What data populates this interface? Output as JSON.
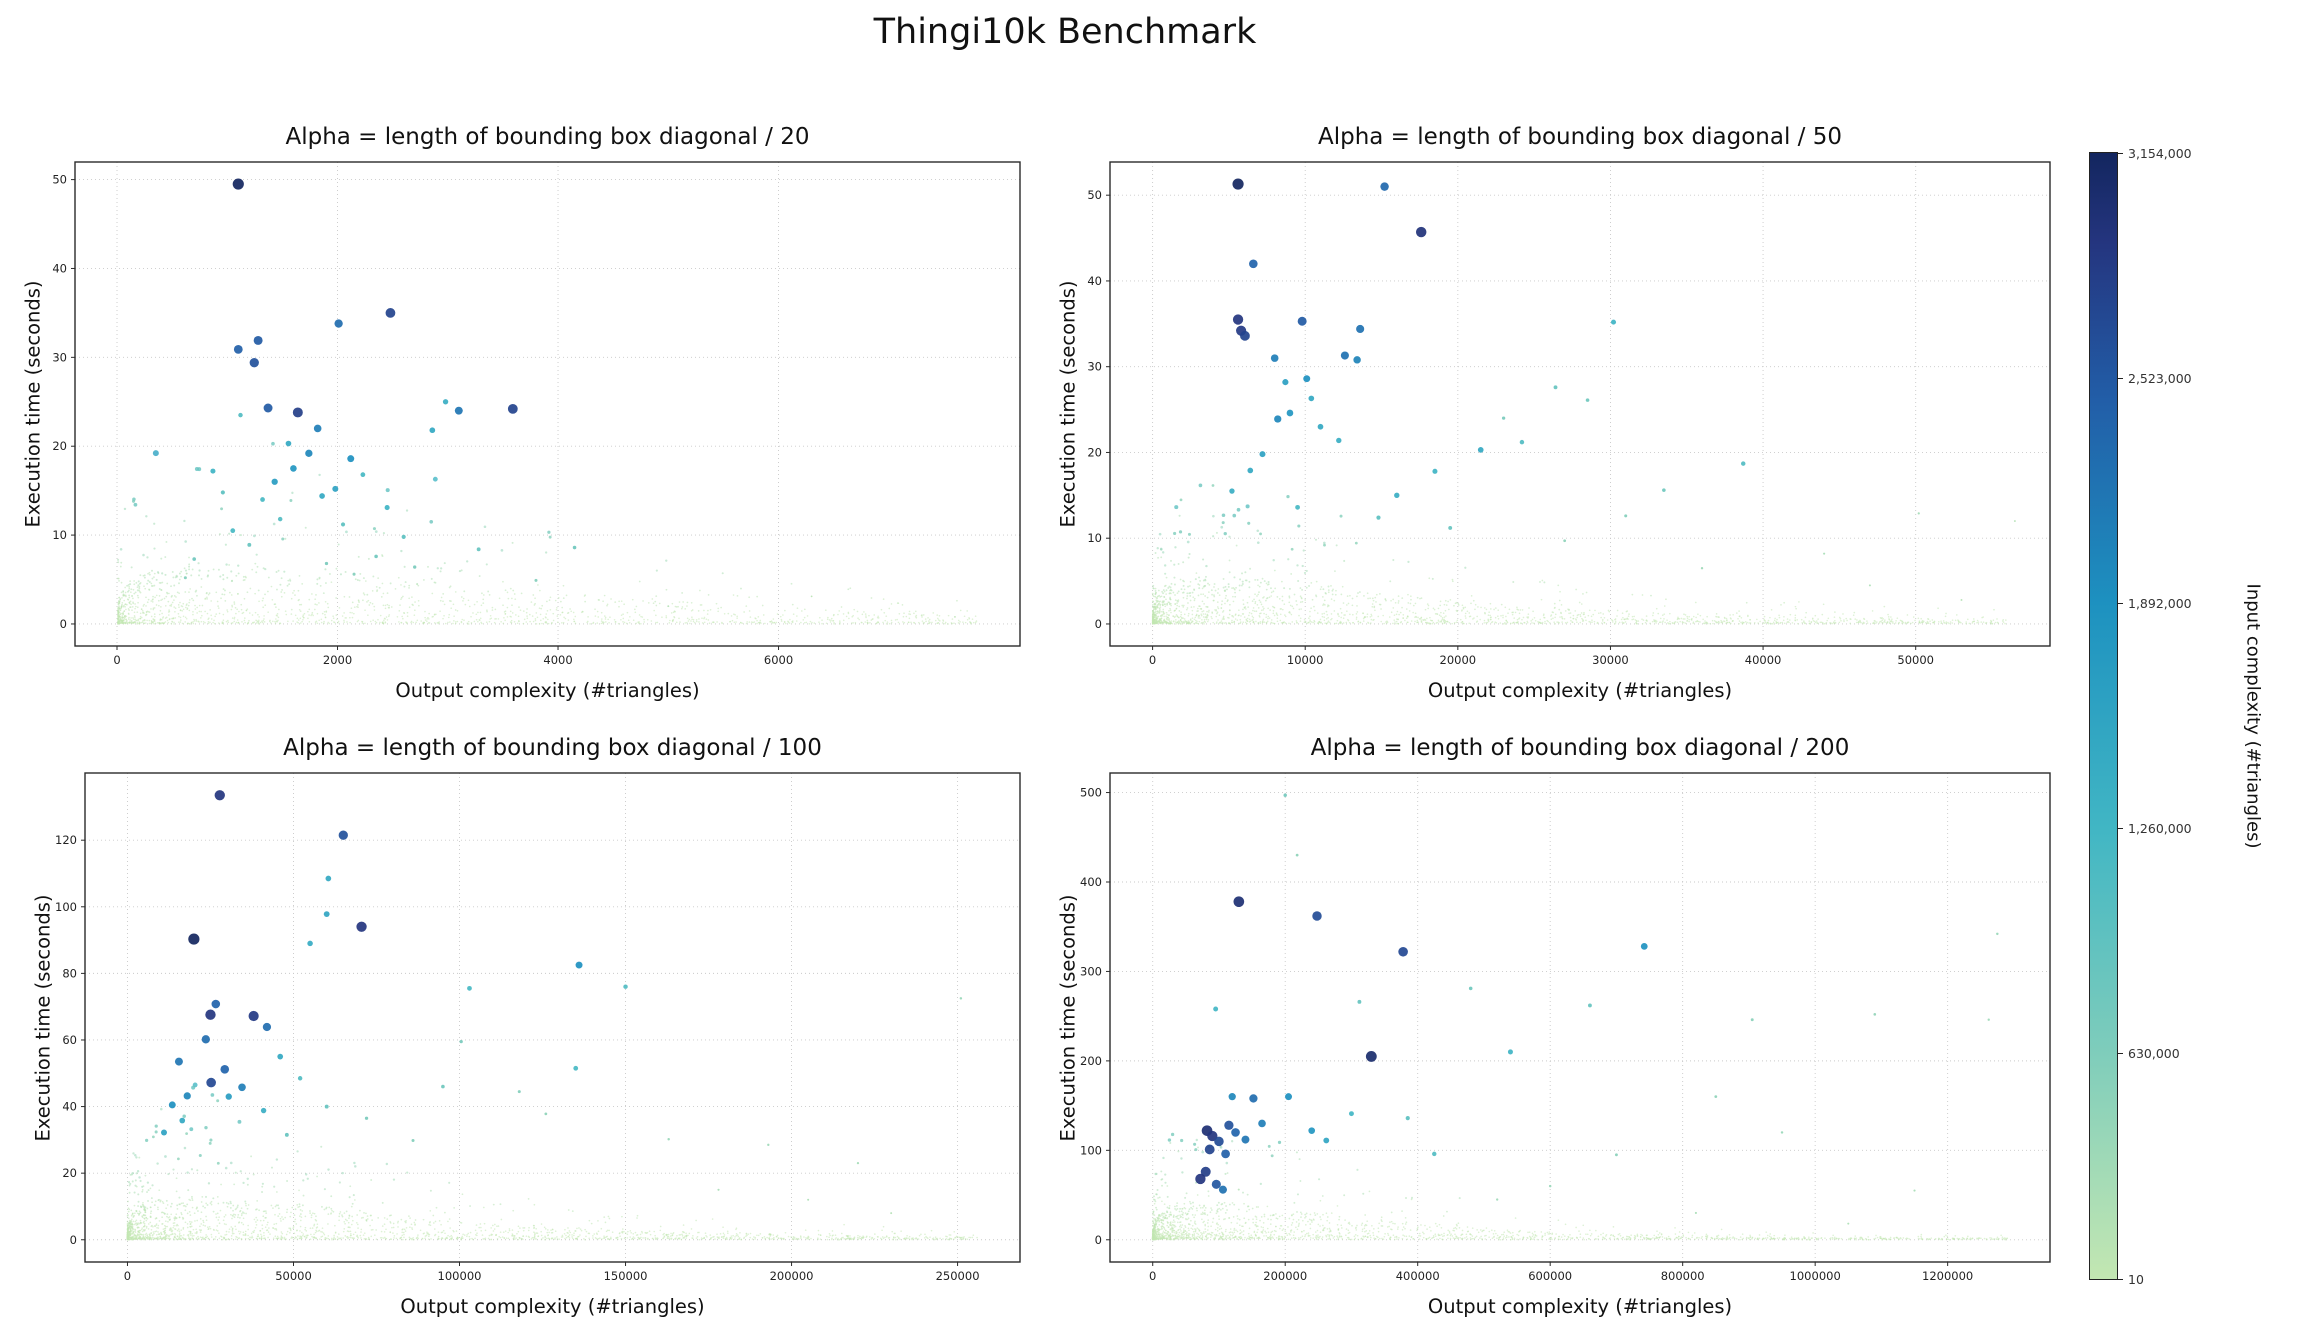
{
  "title": "Thingi10k Benchmark",
  "colorbar": {
    "label": "Input complexity (#triangles)",
    "vmin": 10,
    "vmax": 3154000,
    "tick_labels": [
      "3,154,000",
      "2,523,000",
      "1,892,000",
      "1,260,000",
      "630,000",
      "10"
    ],
    "tick_values": [
      3154000,
      2523000,
      1892000,
      1260000,
      630000,
      10
    ],
    "gradient_stops": [
      "#c3e7b2",
      "#7fcdbb",
      "#41b6c4",
      "#1d91c0",
      "#225ea8",
      "#24357f",
      "#13265f"
    ],
    "gradient_pos": [
      0,
      0.2,
      0.4,
      0.6,
      0.78,
      0.92,
      1
    ]
  },
  "chart_data": [
    {
      "type": "scatter",
      "title": "Alpha = length of bounding box diagonal / 20",
      "xlabel": "Output complexity (#triangles)",
      "ylabel": "Execution time (seconds)",
      "xlim": [
        -381,
        8190
      ],
      "ylim": [
        -2.48,
        51.98
      ],
      "xticks": [
        0,
        2000,
        4000,
        6000
      ],
      "yticks": [
        0,
        10,
        20,
        30,
        40,
        50
      ],
      "grid": true,
      "color_encodes": "input complexity (#triangles), 10 to 3,154,000",
      "featured_points": [
        [
          1100,
          49.5,
          3154000
        ],
        [
          2480,
          35.0,
          2750000
        ],
        [
          2010,
          33.8,
          2300000
        ],
        [
          1280,
          31.9,
          2500000
        ],
        [
          1100,
          30.9,
          2450000
        ],
        [
          1245,
          29.4,
          2600000
        ],
        [
          1370,
          24.3,
          2500000
        ],
        [
          1640,
          23.8,
          2800000
        ],
        [
          3590,
          24.2,
          2750000
        ],
        [
          3100,
          24.0,
          2200000
        ],
        [
          1820,
          22.0,
          2100000
        ],
        [
          2860,
          21.8,
          1500000
        ],
        [
          2120,
          18.6,
          1900000
        ],
        [
          2980,
          25.0,
          1400000
        ],
        [
          1555,
          20.3,
          1500000
        ],
        [
          1600,
          17.5,
          1800000
        ],
        [
          1430,
          16.0,
          1700000
        ],
        [
          1980,
          15.2,
          1600000
        ],
        [
          1320,
          14.0,
          1200000
        ],
        [
          1120,
          23.5,
          1100000
        ],
        [
          2450,
          13.1,
          1300000
        ],
        [
          2230,
          16.8,
          1200000
        ],
        [
          1740,
          19.2,
          2000000
        ],
        [
          1860,
          14.4,
          1500000
        ],
        [
          2600,
          9.8,
          1000000
        ],
        [
          3280,
          8.4,
          900000
        ],
        [
          1050,
          10.5,
          1200000
        ],
        [
          960,
          14.8,
          1000000
        ],
        [
          870,
          17.2,
          1300000
        ],
        [
          1480,
          11.8,
          1100000
        ],
        [
          2050,
          11.2,
          1000000
        ],
        [
          2350,
          7.6,
          800000
        ],
        [
          2700,
          6.4,
          700000
        ],
        [
          3800,
          4.9,
          600000
        ],
        [
          4150,
          8.6,
          800000
        ],
        [
          1200,
          8.9,
          900000
        ],
        [
          700,
          7.3,
          800000
        ],
        [
          620,
          5.2,
          600000
        ],
        [
          1900,
          6.8,
          700000
        ],
        [
          2150,
          5.6,
          600000
        ],
        [
          5000,
          2.0,
          150000
        ],
        [
          6300,
          3.1,
          100000
        ],
        [
          7600,
          0.8,
          80000
        ]
      ],
      "cloud": {
        "count": 1700,
        "seed": 11,
        "x_pow": 2.2,
        "x_data_max": 7800,
        "y_base": 20,
        "x_decay": 2500,
        "y_ref": 30,
        "mid_prob": 0.11
      }
    },
    {
      "type": "scatter",
      "title": "Alpha = length of bounding box diagonal / 50",
      "xlabel": "Output complexity (#triangles)",
      "ylabel": "Execution time (seconds)",
      "xlim": [
        -2791,
        58800
      ],
      "ylim": [
        -2.57,
        53.87
      ],
      "xticks": [
        0,
        10000,
        20000,
        30000,
        40000,
        50000
      ],
      "yticks": [
        0,
        10,
        20,
        30,
        40,
        50
      ],
      "grid": true,
      "color_encodes": "input complexity (#triangles), 10 to 3,154,000",
      "featured_points": [
        [
          5600,
          51.3,
          3154000
        ],
        [
          15200,
          51.0,
          2350000
        ],
        [
          17600,
          45.7,
          2950000
        ],
        [
          6600,
          42.0,
          2400000
        ],
        [
          5600,
          35.5,
          2900000
        ],
        [
          5800,
          34.2,
          2850000
        ],
        [
          6050,
          33.6,
          2750000
        ],
        [
          9800,
          35.3,
          2500000
        ],
        [
          13600,
          34.4,
          2250000
        ],
        [
          30200,
          35.2,
          1300000
        ],
        [
          12600,
          31.3,
          2250000
        ],
        [
          13400,
          30.8,
          2050000
        ],
        [
          10100,
          28.6,
          1900000
        ],
        [
          8700,
          28.2,
          1650000
        ],
        [
          10400,
          26.3,
          1500000
        ],
        [
          9000,
          24.6,
          1800000
        ],
        [
          8200,
          23.9,
          2000000
        ],
        [
          11000,
          23.0,
          1500000
        ],
        [
          12200,
          21.4,
          1400000
        ],
        [
          21500,
          20.3,
          1500000
        ],
        [
          24200,
          21.2,
          1100000
        ],
        [
          26400,
          27.6,
          900000
        ],
        [
          28500,
          26.1,
          800000
        ],
        [
          23000,
          24.0,
          700000
        ],
        [
          38700,
          18.7,
          1100000
        ],
        [
          33500,
          15.6,
          800000
        ],
        [
          18500,
          17.8,
          1300000
        ],
        [
          16000,
          15.0,
          1400000
        ],
        [
          7200,
          19.8,
          1600000
        ],
        [
          6400,
          17.9,
          1500000
        ],
        [
          5200,
          15.5,
          1400000
        ],
        [
          9500,
          13.6,
          1200000
        ],
        [
          14800,
          12.4,
          1000000
        ],
        [
          31000,
          12.6,
          600000
        ],
        [
          50200,
          12.9,
          300000
        ],
        [
          44000,
          8.2,
          250000
        ],
        [
          27000,
          9.7,
          500000
        ],
        [
          36000,
          6.5,
          350000
        ],
        [
          19500,
          11.2,
          900000
        ],
        [
          8000,
          31.0,
          2100000
        ],
        [
          47000,
          4.5,
          200000
        ],
        [
          56500,
          12.0,
          150000
        ],
        [
          53000,
          2.8,
          150000
        ]
      ],
      "cloud": {
        "count": 2000,
        "seed": 22,
        "x_pow": 2.4,
        "x_data_max": 56000,
        "y_base": 18,
        "x_decay": 12000,
        "y_ref": 30,
        "mid_prob": 0.12
      }
    },
    {
      "type": "scatter",
      "title": "Alpha = length of bounding box diagonal / 100",
      "xlabel": "Output complexity (#triangles)",
      "ylabel": "Execution time (seconds)",
      "xlim": [
        -12790,
        268800
      ],
      "ylim": [
        -6.68,
        140.18
      ],
      "xticks": [
        0,
        50000,
        100000,
        150000,
        200000,
        250000
      ],
      "yticks": [
        0,
        20,
        40,
        60,
        80,
        100,
        120
      ],
      "grid": true,
      "color_encodes": "input complexity (#triangles), 10 to 3,154,000",
      "featured_points": [
        [
          27800,
          133.5,
          2900000
        ],
        [
          65000,
          121.5,
          2600000
        ],
        [
          60500,
          108.5,
          1500000
        ],
        [
          60000,
          97.8,
          1550000
        ],
        [
          70500,
          94.0,
          2900000
        ],
        [
          20000,
          90.3,
          3154000
        ],
        [
          55000,
          89.0,
          1450000
        ],
        [
          136000,
          82.5,
          1900000
        ],
        [
          103000,
          75.5,
          1200000
        ],
        [
          150000,
          76.0,
          1100000
        ],
        [
          251000,
          72.5,
          400000
        ],
        [
          26600,
          70.8,
          2400000
        ],
        [
          25000,
          67.6,
          2900000
        ],
        [
          38000,
          67.2,
          2850000
        ],
        [
          42000,
          63.9,
          2300000
        ],
        [
          23600,
          60.2,
          2300000
        ],
        [
          15500,
          53.5,
          2200000
        ],
        [
          29300,
          51.2,
          2400000
        ],
        [
          25200,
          47.2,
          2700000
        ],
        [
          34500,
          45.8,
          2100000
        ],
        [
          18000,
          43.2,
          2000000
        ],
        [
          13500,
          40.5,
          1900000
        ],
        [
          46000,
          55.0,
          1500000
        ],
        [
          30500,
          43.0,
          1700000
        ],
        [
          52000,
          48.5,
          1100000
        ],
        [
          41000,
          38.8,
          1400000
        ],
        [
          135000,
          51.5,
          1200000
        ],
        [
          95000,
          46.0,
          800000
        ],
        [
          118000,
          44.5,
          600000
        ],
        [
          60000,
          40.0,
          900000
        ],
        [
          72000,
          36.5,
          700000
        ],
        [
          16500,
          35.8,
          1500000
        ],
        [
          11000,
          32.2,
          1600000
        ],
        [
          48000,
          31.5,
          900000
        ],
        [
          86000,
          29.8,
          600000
        ],
        [
          100500,
          59.5,
          700000
        ],
        [
          126000,
          37.8,
          500000
        ],
        [
          163000,
          30.2,
          400000
        ],
        [
          193000,
          28.5,
          350000
        ],
        [
          220000,
          23.0,
          300000
        ],
        [
          230000,
          8.0,
          150000
        ],
        [
          205000,
          12.0,
          200000
        ],
        [
          178000,
          15.0,
          250000
        ]
      ],
      "cloud": {
        "count": 2200,
        "seed": 33,
        "x_pow": 2.6,
        "x_data_max": 256000,
        "y_base": 45,
        "x_decay": 55000,
        "y_ref": 80,
        "mid_prob": 0.12
      }
    },
    {
      "type": "scatter",
      "title": "Alpha = length of bounding box diagonal / 200",
      "xlabel": "Output complexity (#triangles)",
      "ylabel": "Execution time (seconds)",
      "xlim": [
        -64490,
        1354500
      ],
      "ylim": [
        -24.85,
        521.85
      ],
      "xticks": [
        0,
        200000,
        400000,
        600000,
        800000,
        1000000,
        1200000
      ],
      "yticks": [
        0,
        100,
        200,
        300,
        400,
        500
      ],
      "grid": true,
      "color_encodes": "input complexity (#triangles), 10 to 3,154,000",
      "featured_points": [
        [
          130000,
          378,
          3000000
        ],
        [
          248000,
          362,
          2650000
        ],
        [
          378000,
          322,
          2700000
        ],
        [
          742000,
          328,
          1850000
        ],
        [
          330000,
          205,
          3050000
        ],
        [
          200000,
          497,
          750000
        ],
        [
          218000,
          430,
          500000
        ],
        [
          95000,
          258,
          1250000
        ],
        [
          540000,
          210,
          1300000
        ],
        [
          660000,
          262,
          900000
        ],
        [
          152000,
          158,
          2300000
        ],
        [
          120000,
          160,
          2000000
        ],
        [
          82000,
          122,
          3000000
        ],
        [
          90000,
          116,
          2900000
        ],
        [
          100000,
          110,
          2650000
        ],
        [
          86000,
          101,
          2750000
        ],
        [
          110000,
          96,
          2450000
        ],
        [
          96000,
          62,
          2550000
        ],
        [
          106000,
          56,
          2250000
        ],
        [
          80000,
          76,
          2800000
        ],
        [
          72000,
          68,
          2900000
        ],
        [
          115000,
          128,
          2600000
        ],
        [
          125000,
          120,
          2400000
        ],
        [
          140000,
          112,
          2200000
        ],
        [
          165000,
          130,
          2100000
        ],
        [
          240000,
          122,
          1800000
        ],
        [
          262000,
          111,
          1550000
        ],
        [
          300000,
          141,
          1250000
        ],
        [
          385000,
          136,
          1000000
        ],
        [
          425000,
          96,
          1100000
        ],
        [
          480000,
          281,
          800000
        ],
        [
          312000,
          266,
          900000
        ],
        [
          905000,
          246,
          550000
        ],
        [
          1090000,
          252,
          450000
        ],
        [
          1262000,
          246,
          350000
        ],
        [
          1275000,
          342,
          400000
        ],
        [
          850000,
          160,
          500000
        ],
        [
          950000,
          120,
          400000
        ],
        [
          700000,
          95,
          550000
        ],
        [
          205000,
          160,
          1900000
        ],
        [
          600000,
          60,
          400000
        ],
        [
          520000,
          45,
          350000
        ],
        [
          820000,
          30,
          250000
        ],
        [
          1050000,
          18,
          200000
        ],
        [
          1150000,
          55,
          250000
        ]
      ],
      "cloud": {
        "count": 2000,
        "seed": 44,
        "x_pow": 2.8,
        "x_data_max": 1290000,
        "y_base": 160,
        "x_decay": 220000,
        "y_ref": 300,
        "mid_prob": 0.12
      }
    }
  ]
}
